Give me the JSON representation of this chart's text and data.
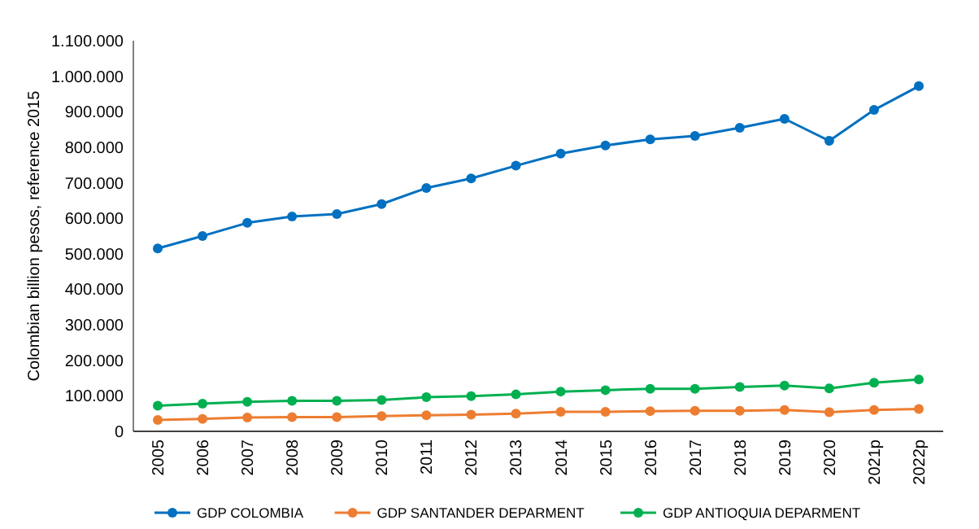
{
  "chart_data": {
    "type": "line",
    "ylabel": "Colombian billion pesos, reference 2015",
    "categories": [
      "2005",
      "2006",
      "2007",
      "2008",
      "2009",
      "2010",
      "2011",
      "2012",
      "2013",
      "2014",
      "2015",
      "2016",
      "2017",
      "2018",
      "2019",
      "2020",
      "2021p",
      "2022p"
    ],
    "series": [
      {
        "name": "GDP COLOMBIA",
        "color": "#0070c0",
        "values": [
          515000,
          550000,
          587000,
          605000,
          612000,
          640000,
          685000,
          712000,
          748000,
          782000,
          805000,
          822000,
          832000,
          855000,
          880000,
          818000,
          905000,
          972000
        ]
      },
      {
        "name": "GDP SANTANDER DEPARMENT",
        "color": "#ed7d31",
        "values": [
          32000,
          35000,
          39000,
          40000,
          40000,
          43000,
          45000,
          47000,
          50000,
          55000,
          55000,
          57000,
          58000,
          58000,
          60000,
          54000,
          60000,
          63000
        ]
      },
      {
        "name": "GDP ANTIOQUIA DEPARMENT",
        "color": "#00b050",
        "values": [
          72000,
          78000,
          83000,
          86000,
          86000,
          88000,
          96000,
          99000,
          104000,
          112000,
          116000,
          120000,
          120000,
          125000,
          129000,
          121000,
          137000,
          146000
        ]
      }
    ],
    "ylim": [
      0,
      1100000
    ],
    "yticks": [
      {
        "value": 0,
        "label": "0"
      },
      {
        "value": 100000,
        "label": "100.000"
      },
      {
        "value": 200000,
        "label": "200.000"
      },
      {
        "value": 300000,
        "label": "300.000"
      },
      {
        "value": 400000,
        "label": "400.000"
      },
      {
        "value": 500000,
        "label": "500.000"
      },
      {
        "value": 600000,
        "label": "600.000"
      },
      {
        "value": 700000,
        "label": "700.000"
      },
      {
        "value": 800000,
        "label": "800.000"
      },
      {
        "value": 900000,
        "label": "900.000"
      },
      {
        "value": 1000000,
        "label": "1.000.000"
      },
      {
        "value": 1100000,
        "label": "1.100.000"
      }
    ],
    "grid": false,
    "legend": "bottom",
    "marker": "circle",
    "line_style": "solid"
  }
}
